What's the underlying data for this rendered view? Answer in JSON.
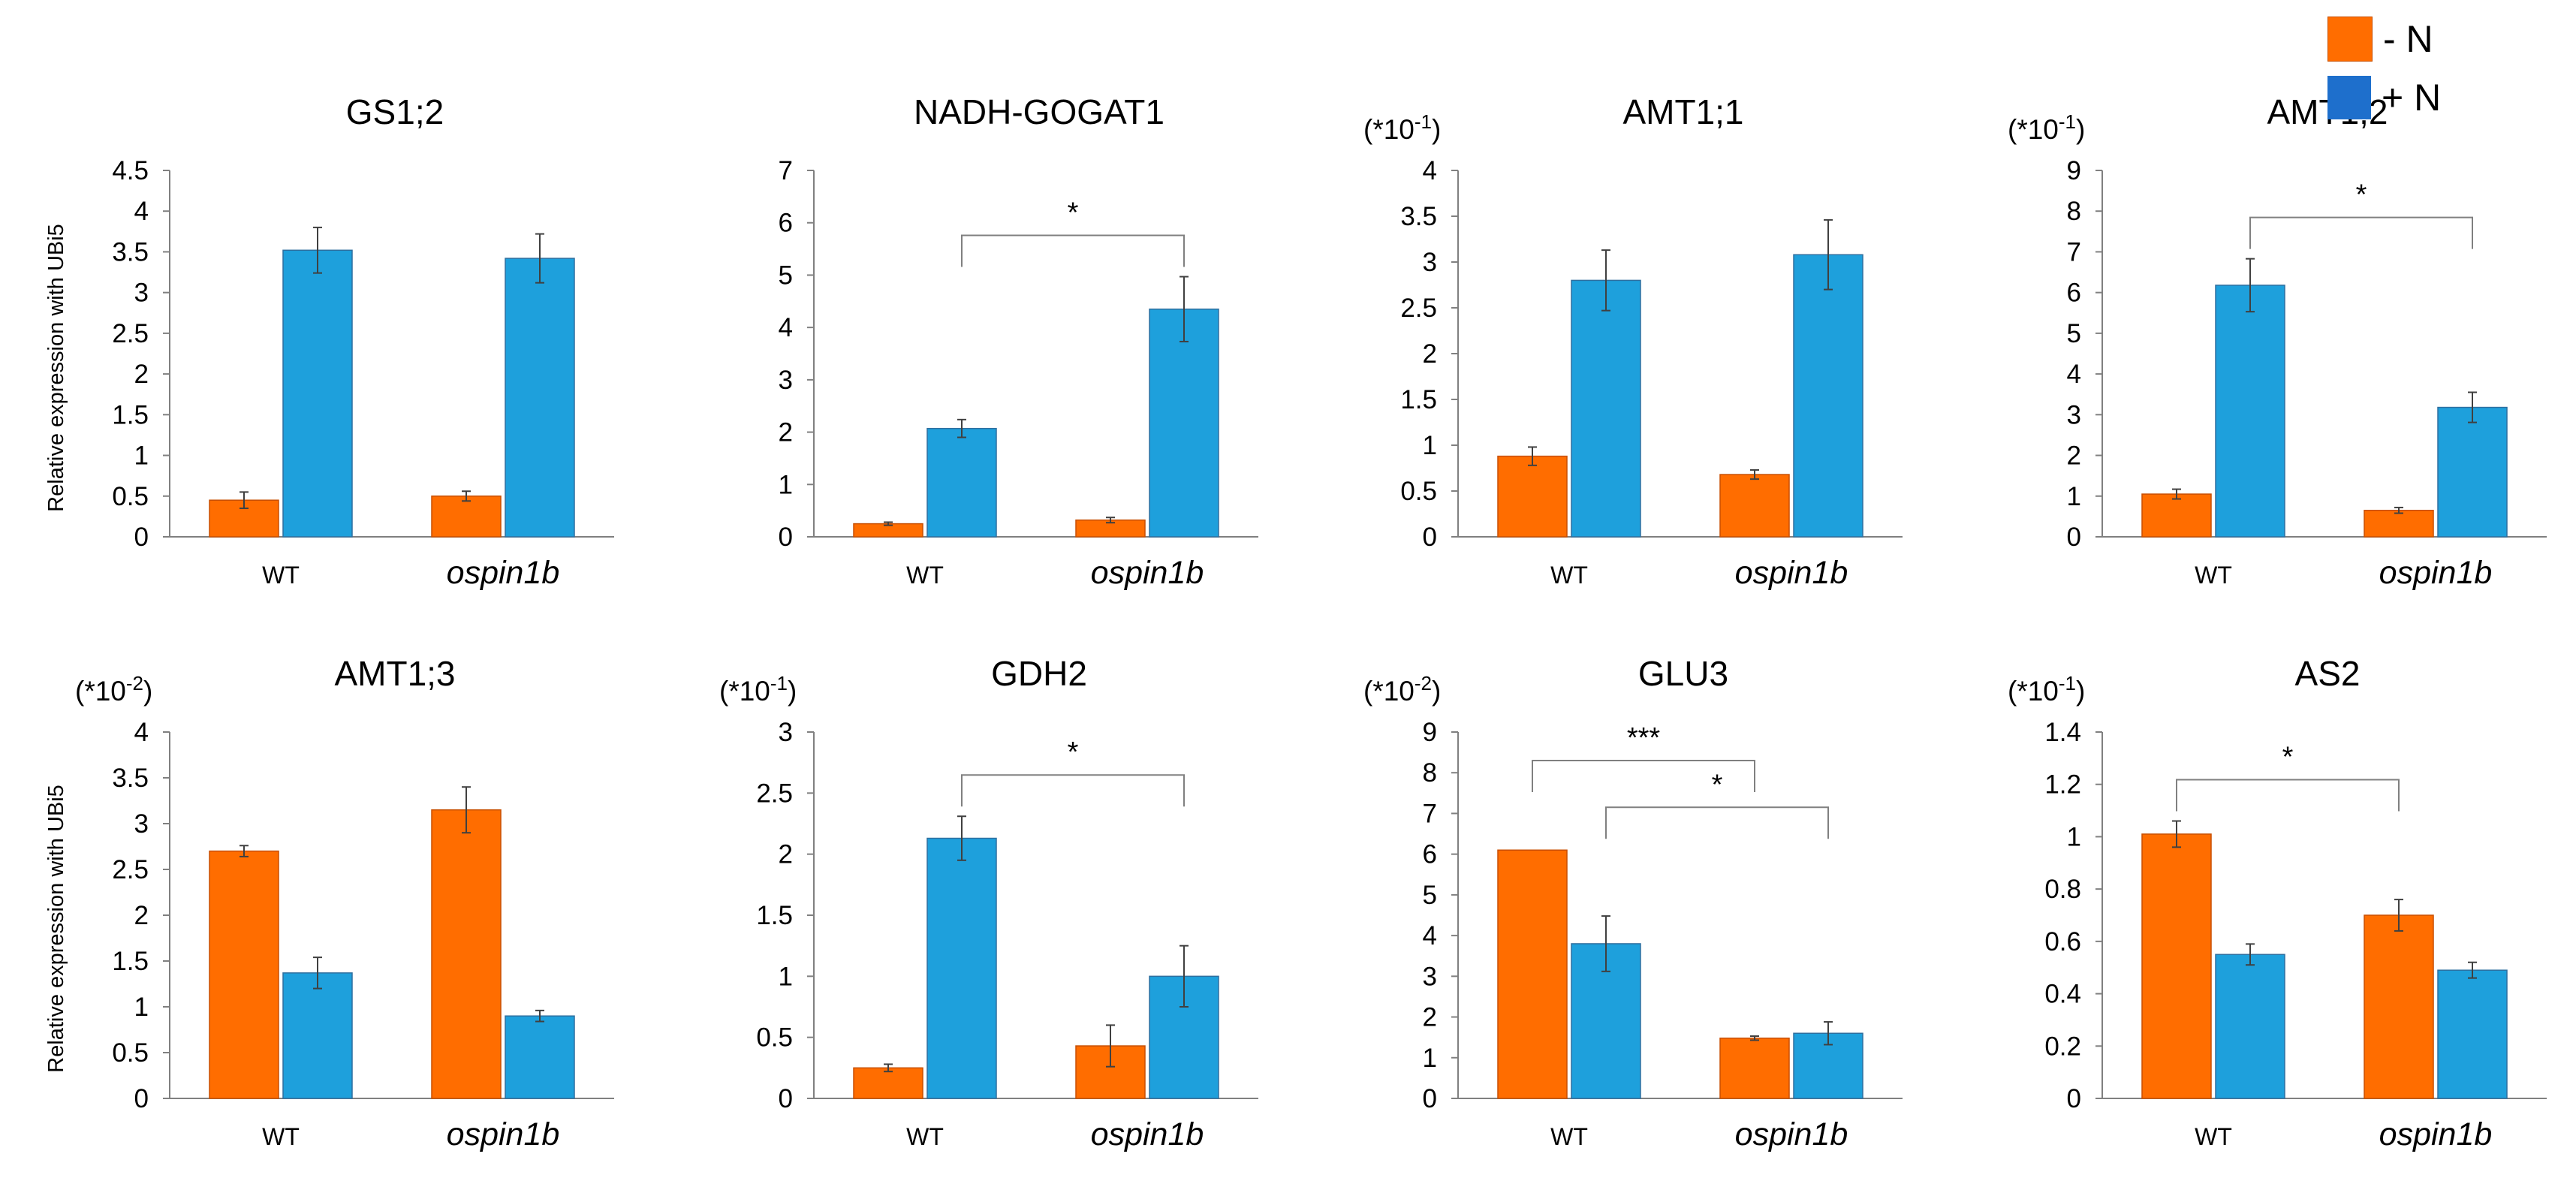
{
  "colors": {
    "minus_n": "#FF6D00",
    "plus_n": "#1EA0DC",
    "text": "#000000",
    "axis": "#808080"
  },
  "legend": [
    {
      "label": "- N",
      "color": "#FF6D00"
    },
    {
      "label": "+ N",
      "color": "#1EA0DC"
    }
  ],
  "ylabel_row1": "Relative expression with UBi5",
  "ylabel_row2": "Relative expression with UBi5",
  "chart_data": [
    {
      "type": "bar",
      "title": "GS1;2",
      "scale_note": "",
      "categories": [
        "WT",
        "ospin1b"
      ],
      "ylim": [
        0,
        4.5
      ],
      "yticks": [
        "0",
        "0.5",
        "1",
        "1.5",
        "2",
        "2.5",
        "3",
        "3.5",
        "4",
        "4.5"
      ],
      "series": [
        {
          "name": "- N",
          "values": [
            0.45,
            0.5
          ],
          "errors": [
            0.1,
            0.06
          ]
        },
        {
          "name": "+ N",
          "values": [
            3.52,
            3.42
          ],
          "errors": [
            0.28,
            0.3
          ]
        }
      ],
      "significance": []
    },
    {
      "type": "bar",
      "title": "NADH-GOGAT1",
      "scale_note": "",
      "categories": [
        "WT",
        "ospin1b"
      ],
      "ylim": [
        0,
        7
      ],
      "yticks": [
        "0",
        "1",
        "2",
        "3",
        "4",
        "5",
        "6",
        "7"
      ],
      "series": [
        {
          "name": "- N",
          "values": [
            0.25,
            0.32
          ],
          "errors": [
            0.03,
            0.05
          ]
        },
        {
          "name": "+ N",
          "values": [
            2.07,
            4.35
          ],
          "errors": [
            0.17,
            0.62
          ]
        }
      ],
      "significance": [
        {
          "from": [
            0,
            1
          ],
          "to": [
            1,
            1
          ],
          "label": "*"
        }
      ]
    },
    {
      "type": "bar",
      "title": "AMT1;1",
      "scale_note": "(*10-1)",
      "categories": [
        "WT",
        "ospin1b"
      ],
      "ylim": [
        0,
        4
      ],
      "yticks": [
        "0",
        "0.5",
        "1",
        "1.5",
        "2",
        "2.5",
        "3",
        "3.5",
        "4"
      ],
      "series": [
        {
          "name": "- N",
          "values": [
            0.88,
            0.68
          ],
          "errors": [
            0.1,
            0.05
          ]
        },
        {
          "name": "+ N",
          "values": [
            2.8,
            3.08
          ],
          "errors": [
            0.33,
            0.38
          ]
        }
      ],
      "significance": []
    },
    {
      "type": "bar",
      "title": "AMT1;2",
      "scale_note": "(*10-1)",
      "categories": [
        "WT",
        "ospin1b"
      ],
      "ylim": [
        0,
        9
      ],
      "yticks": [
        "0",
        "1",
        "2",
        "3",
        "4",
        "5",
        "6",
        "7",
        "8",
        "9"
      ],
      "series": [
        {
          "name": "- N",
          "values": [
            1.05,
            0.65
          ],
          "errors": [
            0.12,
            0.07
          ]
        },
        {
          "name": "+ N",
          "values": [
            6.18,
            3.18
          ],
          "errors": [
            0.65,
            0.37
          ]
        }
      ],
      "significance": [
        {
          "from": [
            0,
            1
          ],
          "to": [
            1,
            1
          ],
          "label": "*"
        }
      ]
    },
    {
      "type": "bar",
      "title": "AMT1;3",
      "scale_note": "(*10-2)",
      "categories": [
        "WT",
        "ospin1b"
      ],
      "ylim": [
        0,
        4
      ],
      "yticks": [
        "0",
        "0.5",
        "1",
        "1.5",
        "2",
        "2.5",
        "3",
        "3.5",
        "4"
      ],
      "series": [
        {
          "name": "- N",
          "values": [
            2.7,
            3.15
          ],
          "errors": [
            0.06,
            0.25
          ]
        },
        {
          "name": "+ N",
          "values": [
            1.37,
            0.9
          ],
          "errors": [
            0.17,
            0.06
          ]
        }
      ],
      "significance": []
    },
    {
      "type": "bar",
      "title": "GDH2",
      "scale_note": "(*10-1)",
      "categories": [
        "WT",
        "ospin1b"
      ],
      "ylim": [
        0,
        3
      ],
      "yticks": [
        "0",
        "0.5",
        "1",
        "1.5",
        "2",
        "2.5",
        "3"
      ],
      "series": [
        {
          "name": "- N",
          "values": [
            0.25,
            0.43
          ],
          "errors": [
            0.03,
            0.17
          ]
        },
        {
          "name": "+ N",
          "values": [
            2.13,
            1.0
          ],
          "errors": [
            0.18,
            0.25
          ]
        }
      ],
      "significance": [
        {
          "from": [
            0,
            1
          ],
          "to": [
            1,
            1
          ],
          "label": "*"
        }
      ]
    },
    {
      "type": "bar",
      "title": "GLU3",
      "scale_note": "(*10-2)",
      "categories": [
        "WT",
        "ospin1b"
      ],
      "ylim": [
        0,
        9
      ],
      "yticks": [
        "0",
        "1",
        "2",
        "3",
        "4",
        "5",
        "6",
        "7",
        "8",
        "9"
      ],
      "series": [
        {
          "name": "- N",
          "values": [
            6.1,
            1.48
          ],
          "errors": [
            0.0,
            0.05
          ]
        },
        {
          "name": "+ N",
          "values": [
            3.8,
            1.6
          ],
          "errors": [
            0.68,
            0.28
          ]
        }
      ],
      "significance": [
        {
          "from": [
            0,
            0
          ],
          "to": [
            1,
            0
          ],
          "label": "***",
          "level": 8.3
        },
        {
          "from": [
            0,
            1
          ],
          "to": [
            1,
            1
          ],
          "label": "*",
          "level": 7.15
        }
      ]
    },
    {
      "type": "bar",
      "title": "AS2",
      "scale_note": "(*10-1)",
      "categories": [
        "WT",
        "ospin1b"
      ],
      "ylim": [
        0,
        1.4
      ],
      "yticks": [
        "0",
        "0.2",
        "0.4",
        "0.6",
        "0.8",
        "1",
        "1.2",
        "1.4"
      ],
      "series": [
        {
          "name": "- N",
          "values": [
            1.01,
            0.7
          ],
          "errors": [
            0.05,
            0.06
          ]
        },
        {
          "name": "+ N",
          "values": [
            0.55,
            0.49
          ],
          "errors": [
            0.04,
            0.03
          ]
        }
      ],
      "significance": [
        {
          "from": [
            0,
            0
          ],
          "to": [
            1,
            0
          ],
          "label": "*"
        }
      ]
    }
  ]
}
